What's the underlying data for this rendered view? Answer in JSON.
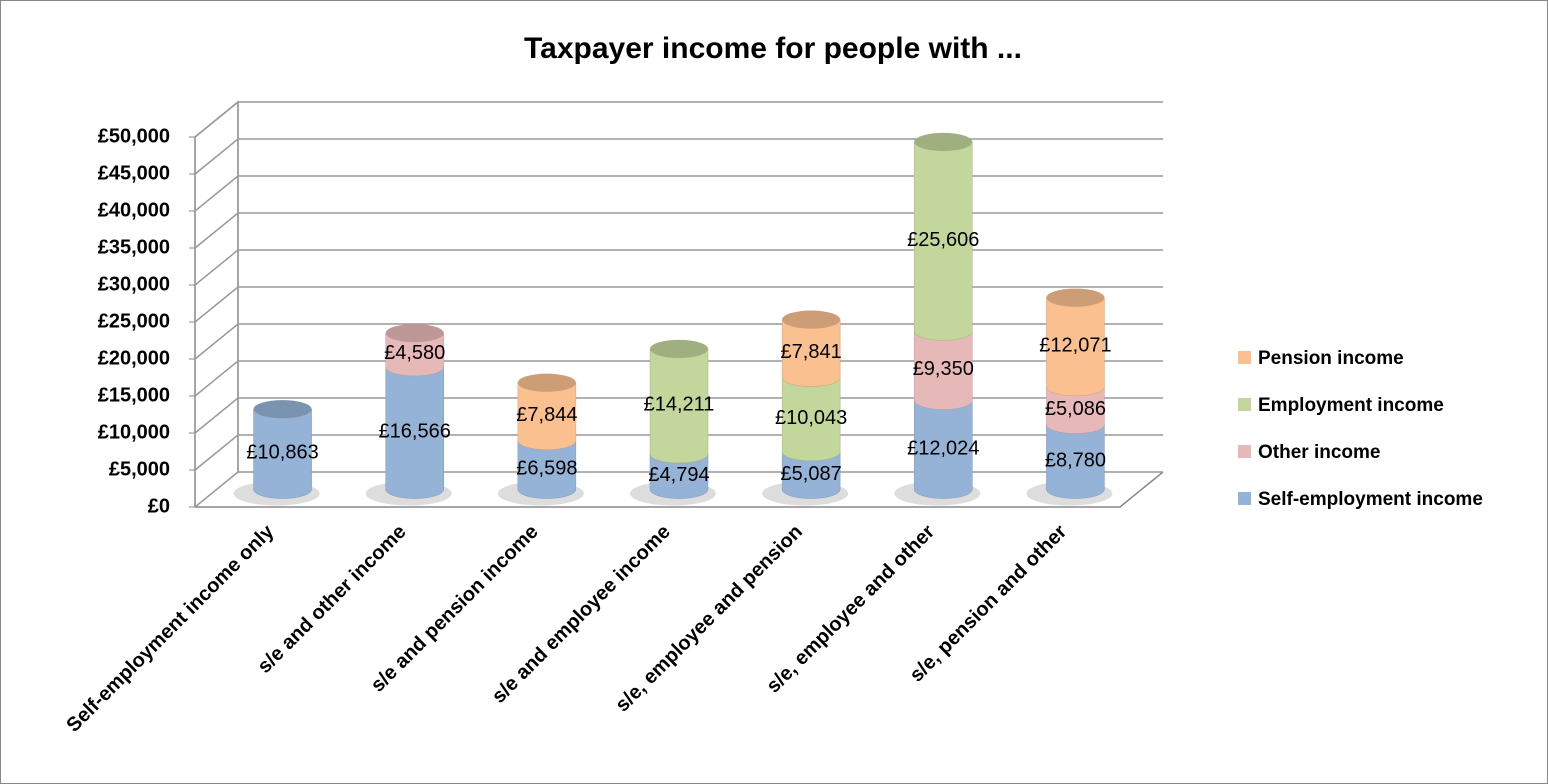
{
  "chart_data": {
    "type": "bar",
    "stacked": true,
    "title": "Taxpayer income for people with ...",
    "categories": [
      "Self-employment income only",
      "s/e and other income",
      "s/e and pension income",
      "s/e and employee income",
      "s/e, employee and pension",
      "s/e, employee and other",
      "s/e, pension and other"
    ],
    "series": [
      {
        "name": "Self-employment income",
        "color": "#95b3d7",
        "values": [
          10863,
          16566,
          6598,
          4794,
          5087,
          12024,
          8780
        ],
        "value_labels": [
          "£10,863",
          "£16,566",
          "£6,598",
          "£4,794",
          "£5,087",
          "£12,024",
          "£8,780"
        ]
      },
      {
        "name": "Other income",
        "color": "#e6b9b8",
        "values": [
          null,
          4580,
          null,
          null,
          null,
          9350,
          5086
        ],
        "value_labels": [
          null,
          "£4,580",
          null,
          null,
          null,
          "£9,350",
          "£5,086"
        ]
      },
      {
        "name": "Employment income",
        "color": "#c3d69b",
        "values": [
          null,
          null,
          null,
          14211,
          10043,
          25606,
          null
        ],
        "value_labels": [
          null,
          null,
          null,
          "£14,211",
          "£10,043",
          "£25,606",
          null
        ]
      },
      {
        "name": "Pension income",
        "color": "#fac090",
        "values": [
          null,
          null,
          7844,
          null,
          7841,
          null,
          12071
        ],
        "value_labels": [
          null,
          null,
          "£7,844",
          null,
          "£7,841",
          null,
          "£12,071"
        ]
      }
    ],
    "ylim": [
      0,
      50000
    ],
    "yticks": [
      {
        "value": 0,
        "label": "£0"
      },
      {
        "value": 5000,
        "label": "£5,000"
      },
      {
        "value": 10000,
        "label": "£10,000"
      },
      {
        "value": 15000,
        "label": "£15,000"
      },
      {
        "value": 20000,
        "label": "£20,000"
      },
      {
        "value": 25000,
        "label": "£25,000"
      },
      {
        "value": 30000,
        "label": "£30,000"
      },
      {
        "value": 35000,
        "label": "£35,000"
      },
      {
        "value": 40000,
        "label": "£40,000"
      },
      {
        "value": 45000,
        "label": "£45,000"
      },
      {
        "value": 50000,
        "label": "£50,000"
      }
    ],
    "grid": true,
    "legend": "right"
  }
}
